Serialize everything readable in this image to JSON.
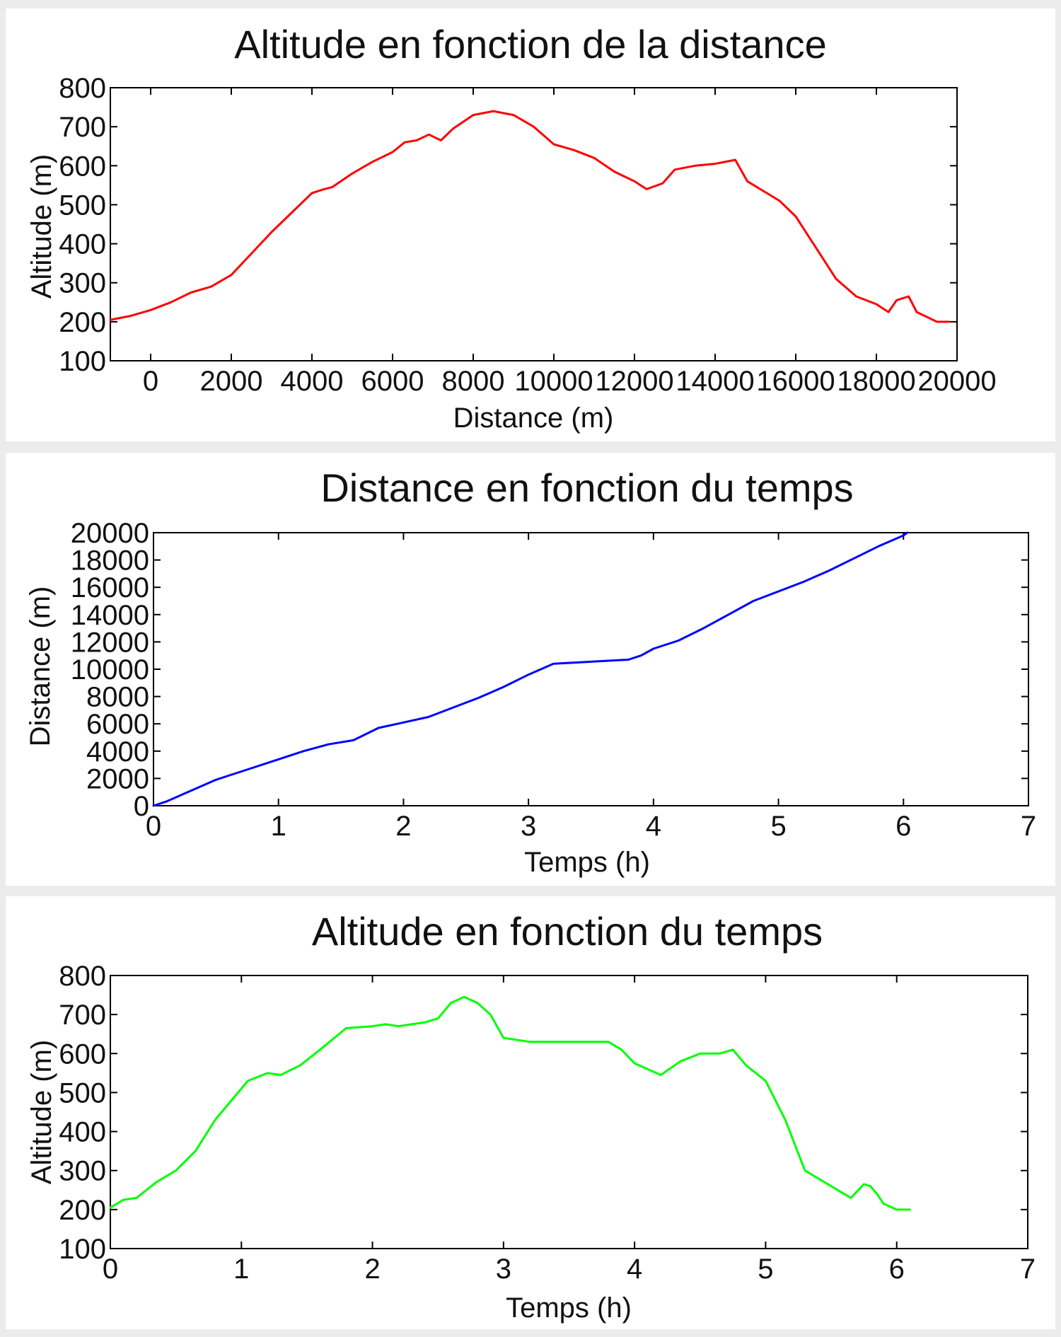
{
  "chart_data": [
    {
      "type": "line",
      "title": "Altitude en fonction de la distance",
      "xlabel": "Distance (m)",
      "ylabel": "Altitude (m)",
      "xlim": [
        -1000,
        20000
      ],
      "ylim": [
        100,
        800
      ],
      "xticks": [
        0,
        2000,
        4000,
        6000,
        8000,
        10000,
        12000,
        14000,
        16000,
        18000,
        20000
      ],
      "yticks": [
        100,
        200,
        300,
        400,
        500,
        600,
        700,
        800
      ],
      "grid": false,
      "series": [
        {
          "color": "#ff0000",
          "x": [
            -1000,
            -500,
            0,
            500,
            1000,
            1500,
            2000,
            2500,
            3000,
            3500,
            4000,
            4300,
            4500,
            5000,
            5500,
            6000,
            6300,
            6600,
            6900,
            7200,
            7500,
            8000,
            8500,
            9000,
            9500,
            10000,
            10500,
            11000,
            11500,
            12000,
            12300,
            12700,
            13000,
            13500,
            14000,
            14500,
            14800,
            15200,
            15600,
            16000,
            16500,
            17000,
            17500,
            18000,
            18300,
            18500,
            18800,
            19000,
            19300,
            19500,
            19800
          ],
          "y": [
            205,
            215,
            230,
            250,
            275,
            290,
            320,
            375,
            430,
            480,
            530,
            540,
            545,
            580,
            610,
            635,
            660,
            665,
            680,
            665,
            695,
            730,
            740,
            730,
            700,
            655,
            640,
            620,
            585,
            560,
            540,
            555,
            590,
            600,
            605,
            615,
            560,
            535,
            510,
            470,
            390,
            310,
            265,
            245,
            225,
            255,
            265,
            225,
            210,
            200,
            200
          ]
        }
      ]
    },
    {
      "type": "line",
      "title": "Distance en fonction du temps",
      "xlabel": "Temps (h)",
      "ylabel": "Distance (m)",
      "xlim": [
        0,
        7
      ],
      "ylim": [
        0,
        20000
      ],
      "xticks": [
        0,
        1,
        2,
        3,
        4,
        5,
        6,
        7
      ],
      "yticks": [
        0,
        2000,
        4000,
        6000,
        8000,
        10000,
        12000,
        14000,
        16000,
        18000,
        20000
      ],
      "grid": false,
      "series": [
        {
          "color": "#0000ff",
          "x": [
            0,
            0.1,
            0.3,
            0.5,
            0.6,
            0.8,
            1.0,
            1.2,
            1.4,
            1.6,
            1.8,
            2.0,
            2.2,
            2.4,
            2.6,
            2.8,
            3.0,
            3.2,
            3.4,
            3.6,
            3.8,
            3.9,
            4.0,
            4.2,
            4.4,
            4.6,
            4.8,
            5.0,
            5.2,
            5.4,
            5.6,
            5.8,
            6.0,
            6.03
          ],
          "y": [
            0,
            300,
            1100,
            1900,
            2200,
            2800,
            3400,
            4000,
            4500,
            4800,
            5700,
            6100,
            6500,
            7200,
            7900,
            8700,
            9600,
            10400,
            10500,
            10600,
            10700,
            11000,
            11500,
            12100,
            13000,
            14000,
            15000,
            15700,
            16400,
            17200,
            18100,
            19000,
            19800,
            20000
          ]
        }
      ]
    },
    {
      "type": "line",
      "title": "Altitude en fonction du temps",
      "xlabel": "Temps (h)",
      "ylabel": "Altitude (m)",
      "xlim": [
        0,
        7
      ],
      "ylim": [
        100,
        800
      ],
      "xticks": [
        0,
        1,
        2,
        3,
        4,
        5,
        6,
        7
      ],
      "yticks": [
        100,
        200,
        300,
        400,
        500,
        600,
        700,
        800
      ],
      "grid": false,
      "series": [
        {
          "color": "#00ff00",
          "x": [
            0,
            0.05,
            0.1,
            0.2,
            0.35,
            0.5,
            0.65,
            0.8,
            0.95,
            1.05,
            1.2,
            1.3,
            1.45,
            1.6,
            1.8,
            2.0,
            2.1,
            2.2,
            2.3,
            2.4,
            2.5,
            2.6,
            2.7,
            2.8,
            2.9,
            3.0,
            3.2,
            3.6,
            3.8,
            3.9,
            4.0,
            4.2,
            4.35,
            4.5,
            4.65,
            4.75,
            4.85,
            5.0,
            5.15,
            5.3,
            5.5,
            5.65,
            5.75,
            5.8,
            5.85,
            5.9,
            6.0,
            6.1
          ],
          "y": [
            205,
            215,
            225,
            230,
            270,
            300,
            350,
            430,
            490,
            530,
            550,
            545,
            570,
            610,
            665,
            670,
            675,
            670,
            675,
            680,
            690,
            730,
            745,
            730,
            700,
            640,
            630,
            630,
            630,
            610,
            575,
            545,
            580,
            600,
            600,
            610,
            570,
            530,
            430,
            300,
            260,
            230,
            265,
            260,
            240,
            215,
            200,
            200
          ]
        }
      ]
    }
  ]
}
